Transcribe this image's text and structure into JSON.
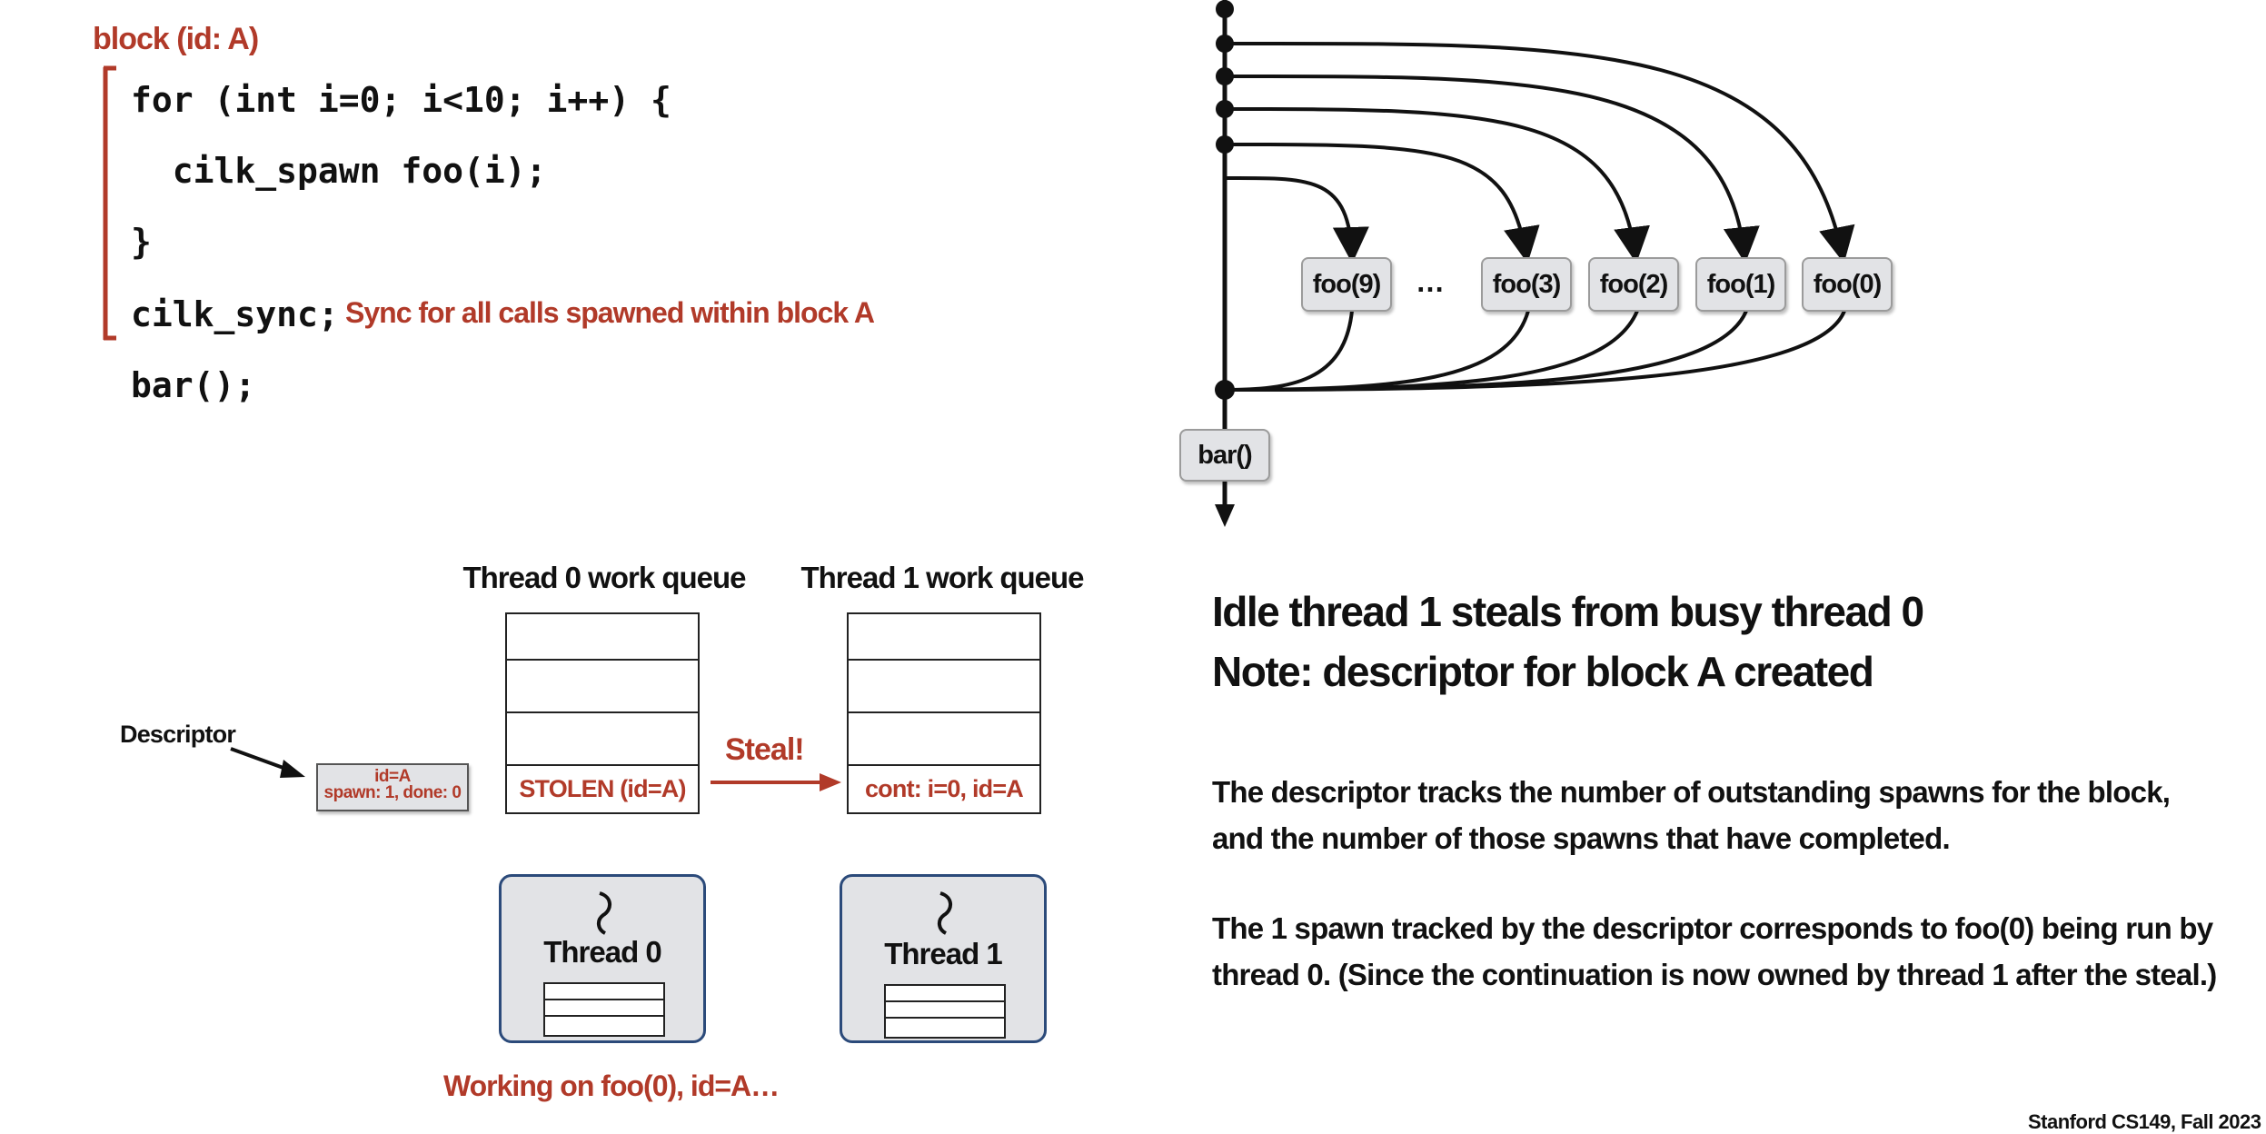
{
  "code": {
    "block_label": "block (id: A)",
    "lines": [
      "for (int i=0; i<10; i++) {",
      "  cilk_spawn foo(i);",
      "}",
      "cilk_sync;",
      "bar();"
    ],
    "sync_comment": "Sync for all calls spawned within block A"
  },
  "graph": {
    "foo_nodes": [
      "foo(9)",
      "…",
      "foo(3)",
      "foo(2)",
      "foo(1)",
      "foo(0)"
    ],
    "bar_node": "bar()"
  },
  "queues": {
    "thread0_title": "Thread 0 work queue",
    "thread1_title": "Thread 1 work queue",
    "thread0_entry": "STOLEN (id=A)",
    "thread1_entry": "cont: i=0, id=A",
    "steal_label": "Steal!"
  },
  "descriptor": {
    "label": "Descriptor",
    "line1": "id=A",
    "line2": "spawn: 1, done: 0"
  },
  "threads": {
    "thread0": "Thread 0",
    "thread1": "Thread 1",
    "thread0_status": "Working on foo(0), id=A…"
  },
  "text": {
    "heading1": "Idle thread 1 steals from busy thread 0",
    "heading2": "Note: descriptor for block A created",
    "para1_line1": "The descriptor tracks the number of outstanding spawns for the block,",
    "para1_line2": "and the number of those spawns that have completed.",
    "para2_line1": "The 1 spawn tracked by the descriptor corresponds to foo(0) being run by",
    "para2_line2": "thread 0. (Since the continuation is now owned by thread 1 after the steal.)"
  },
  "footer": "Stanford CS149, Fall 2023",
  "colors": {
    "accent_red": "#b13a29",
    "thread_border": "#2b4a7a",
    "node_fill": "#e2e3e6"
  }
}
